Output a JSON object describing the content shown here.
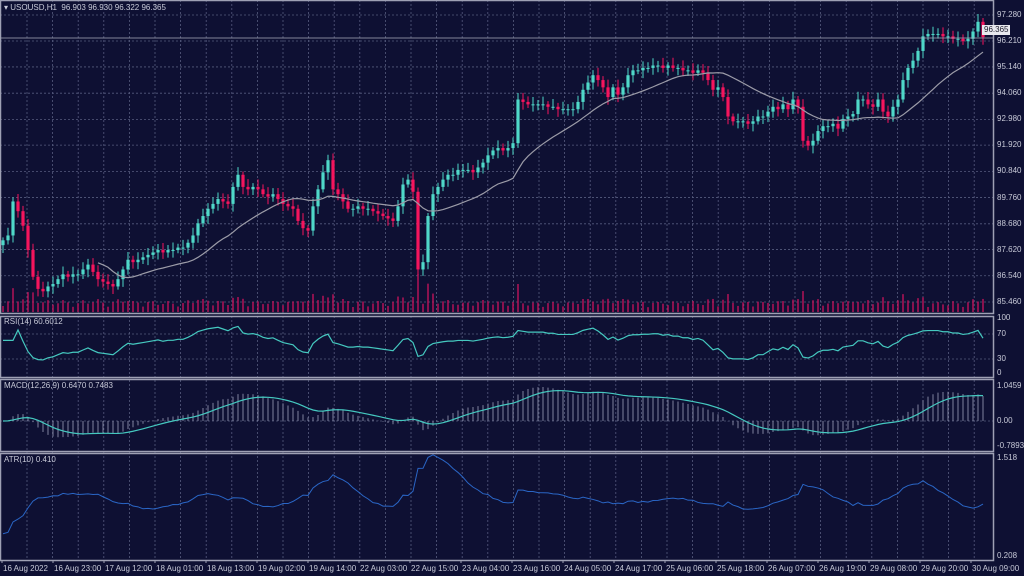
{
  "chart_data": {
    "type": "candlestick",
    "symbol_header": "USOUSD,H1",
    "ohlc_header": "96.903 96.930 96.322 96.365",
    "current_price": "96.365",
    "colors": {
      "background": "#0e1033",
      "bull": "#4fd8c9",
      "bear": "#f5155d",
      "grid": "#565b7e",
      "ma": "#9c9ca8",
      "rsi": "#45c9c0",
      "macd_hist": "#8d90ab",
      "macd_signal": "#45c9c0",
      "atr": "#2a66c6",
      "volume": "#c0145a",
      "frame": "#9ea0b4"
    },
    "ylim": [
      85.2,
      97.9
    ],
    "y_ticks": [
      "97.280",
      "96.210",
      "95.140",
      "94.060",
      "92.980",
      "91.920",
      "90.840",
      "89.760",
      "88.680",
      "87.620",
      "86.540",
      "85.460"
    ],
    "x_ticks": [
      "16 Aug 2022",
      "16 Aug 23:00",
      "17 Aug 12:00",
      "18 Aug 01:00",
      "18 Aug 13:00",
      "19 Aug 02:00",
      "19 Aug 14:00",
      "22 Aug 03:00",
      "22 Aug 15:00",
      "23 Aug 04:00",
      "23 Aug 16:00",
      "24 Aug 05:00",
      "24 Aug 17:00",
      "25 Aug 06:00",
      "25 Aug 18:00",
      "26 Aug 07:00",
      "26 Aug 19:00",
      "29 Aug 08:00",
      "29 Aug 20:00",
      "30 Aug 09:00"
    ],
    "close": [
      88.0,
      88.2,
      89.6,
      89.2,
      88.6,
      87.6,
      86.5,
      86.0,
      85.9,
      86.1,
      86.2,
      86.4,
      86.6,
      86.5,
      86.6,
      86.6,
      86.8,
      87.0,
      86.7,
      86.4,
      86.3,
      86.2,
      86.1,
      86.4,
      86.8,
      87.2,
      87.1,
      87.2,
      87.3,
      87.4,
      87.5,
      87.6,
      87.5,
      87.6,
      87.6,
      87.7,
      87.7,
      87.9,
      88.2,
      88.7,
      89.0,
      89.3,
      89.5,
      89.7,
      89.6,
      89.5,
      90.2,
      90.7,
      90.2,
      90.1,
      90.2,
      90.1,
      89.9,
      89.8,
      89.9,
      89.7,
      89.5,
      89.4,
      89.3,
      88.8,
      88.5,
      88.4,
      89.4,
      90.1,
      90.8,
      91.3,
      90.1,
      89.9,
      89.6,
      89.3,
      89.3,
      89.4,
      89.3,
      89.3,
      89.2,
      89.1,
      89.0,
      88.9,
      88.8,
      89.4,
      90.3,
      90.5,
      90.0,
      86.8,
      87.1,
      89.0,
      89.9,
      90.2,
      90.5,
      90.7,
      90.7,
      90.9,
      90.9,
      90.9,
      90.8,
      91.0,
      91.2,
      91.5,
      91.7,
      91.8,
      91.7,
      91.8,
      92.0,
      93.8,
      93.7,
      93.6,
      93.6,
      93.6,
      93.6,
      93.5,
      93.5,
      93.4,
      93.4,
      93.4,
      93.4,
      93.7,
      94.2,
      94.5,
      94.8,
      94.6,
      94.3,
      93.9,
      94.3,
      94.0,
      94.3,
      94.8,
      95.0,
      95.0,
      95.1,
      95.1,
      95.2,
      95.2,
      95.1,
      95.2,
      95.1,
      95.1,
      95.0,
      95.0,
      94.9,
      95.0,
      94.9,
      94.6,
      94.2,
      94.3,
      93.9,
      93.1,
      92.9,
      92.9,
      92.9,
      92.8,
      92.9,
      93.1,
      93.1,
      93.3,
      93.5,
      93.4,
      93.6,
      93.4,
      93.8,
      93.5,
      92.1,
      91.9,
      92.1,
      92.5,
      92.7,
      92.7,
      92.8,
      92.6,
      93.0,
      93.1,
      93.2,
      93.8,
      93.8,
      93.6,
      93.5,
      93.8,
      93.3,
      93.1,
      93.5,
      93.8,
      94.6,
      95.1,
      95.4,
      95.8,
      96.4,
      96.5,
      96.5,
      96.5,
      96.4,
      96.4,
      96.3,
      96.3,
      96.2,
      96.3,
      96.6,
      97.0,
      96.365
    ],
    "indicators": {
      "rsi": {
        "label": "RSI(14) 60.6012",
        "ticks": [
          "100",
          "70",
          "30",
          "0"
        ]
      },
      "macd": {
        "label": "MACD(12,26,9) 0.6470 0.7483",
        "ticks": [
          "1.0459",
          "0.00",
          "-0.7893"
        ]
      },
      "atr": {
        "label": "ATR(10) 0.410",
        "ticks": [
          "1.518",
          "0.208"
        ]
      }
    }
  }
}
